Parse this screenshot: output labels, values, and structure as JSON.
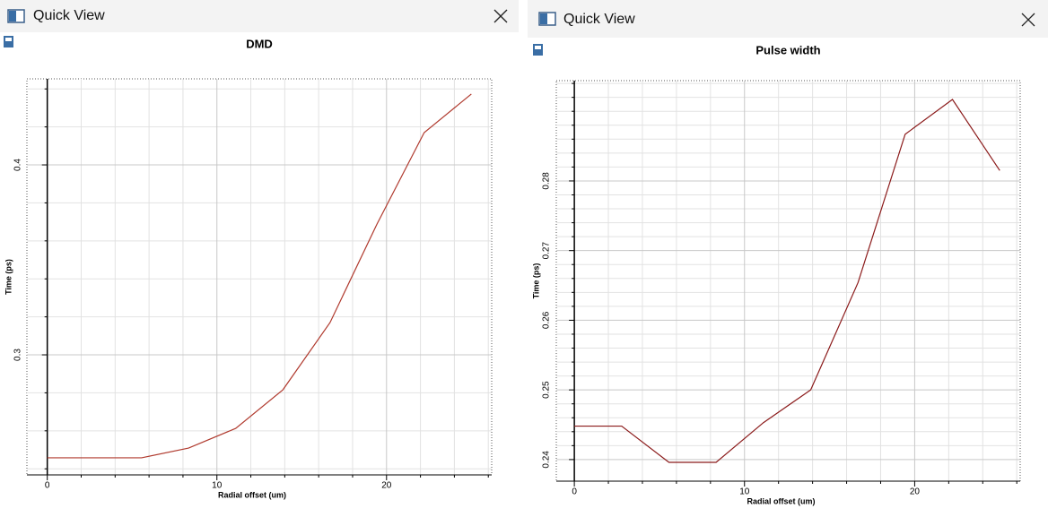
{
  "windows": [
    {
      "title": "Quick View"
    },
    {
      "title": "Quick View"
    }
  ],
  "chart_data": [
    {
      "type": "line",
      "title": "DMD",
      "x_label": "Radial offset (um)",
      "y_label": "Time (ps)",
      "x": [
        0,
        2.78,
        5.56,
        8.33,
        11.11,
        13.89,
        16.67,
        19.44,
        22.22,
        25
      ],
      "values": [
        0.2458,
        0.2458,
        0.2458,
        0.2509,
        0.2613,
        0.2816,
        0.317,
        0.3689,
        0.417,
        0.4373
      ],
      "color": "#b03a2e",
      "xlim": [
        -1.2,
        26.2
      ],
      "xticks": [
        0,
        10,
        20
      ],
      "minor_xticks": [
        2,
        4,
        6,
        8,
        12,
        14,
        16,
        18,
        22,
        24,
        26
      ],
      "ylim": [
        0.2368,
        0.4453
      ],
      "yticks": [
        0.3,
        0.4
      ],
      "minor_yticks": [
        0.24,
        0.26,
        0.28,
        0.32,
        0.34,
        0.36,
        0.38,
        0.42,
        0.44
      ],
      "grid": true
    },
    {
      "type": "line",
      "title": "Pulse width",
      "x_label": "Radial offset (um)",
      "y_label": "Time (ps)",
      "x": [
        0,
        2.78,
        5.56,
        8.33,
        11.11,
        13.89,
        16.67,
        19.44,
        22.22,
        25
      ],
      "values": [
        0.2448,
        0.2448,
        0.2396,
        0.2396,
        0.2453,
        0.25,
        0.2654,
        0.2867,
        0.2917,
        0.2815
      ],
      "color": "#8b1a1a",
      "xlim": [
        -1.06,
        26.2
      ],
      "xticks": [
        0,
        10,
        20
      ],
      "minor_xticks": [
        2,
        4,
        6,
        8,
        12,
        14,
        16,
        18,
        22,
        24,
        26
      ],
      "ylim": [
        0.2369,
        0.2944
      ],
      "yticks": [
        0.24,
        0.25,
        0.26,
        0.27,
        0.28
      ],
      "minor_yticks": [
        0.242,
        0.244,
        0.246,
        0.248,
        0.252,
        0.254,
        0.256,
        0.258,
        0.262,
        0.264,
        0.266,
        0.268,
        0.272,
        0.274,
        0.276,
        0.278,
        0.282,
        0.284,
        0.286,
        0.288,
        0.29,
        0.292,
        0.294
      ],
      "grid": true
    }
  ]
}
